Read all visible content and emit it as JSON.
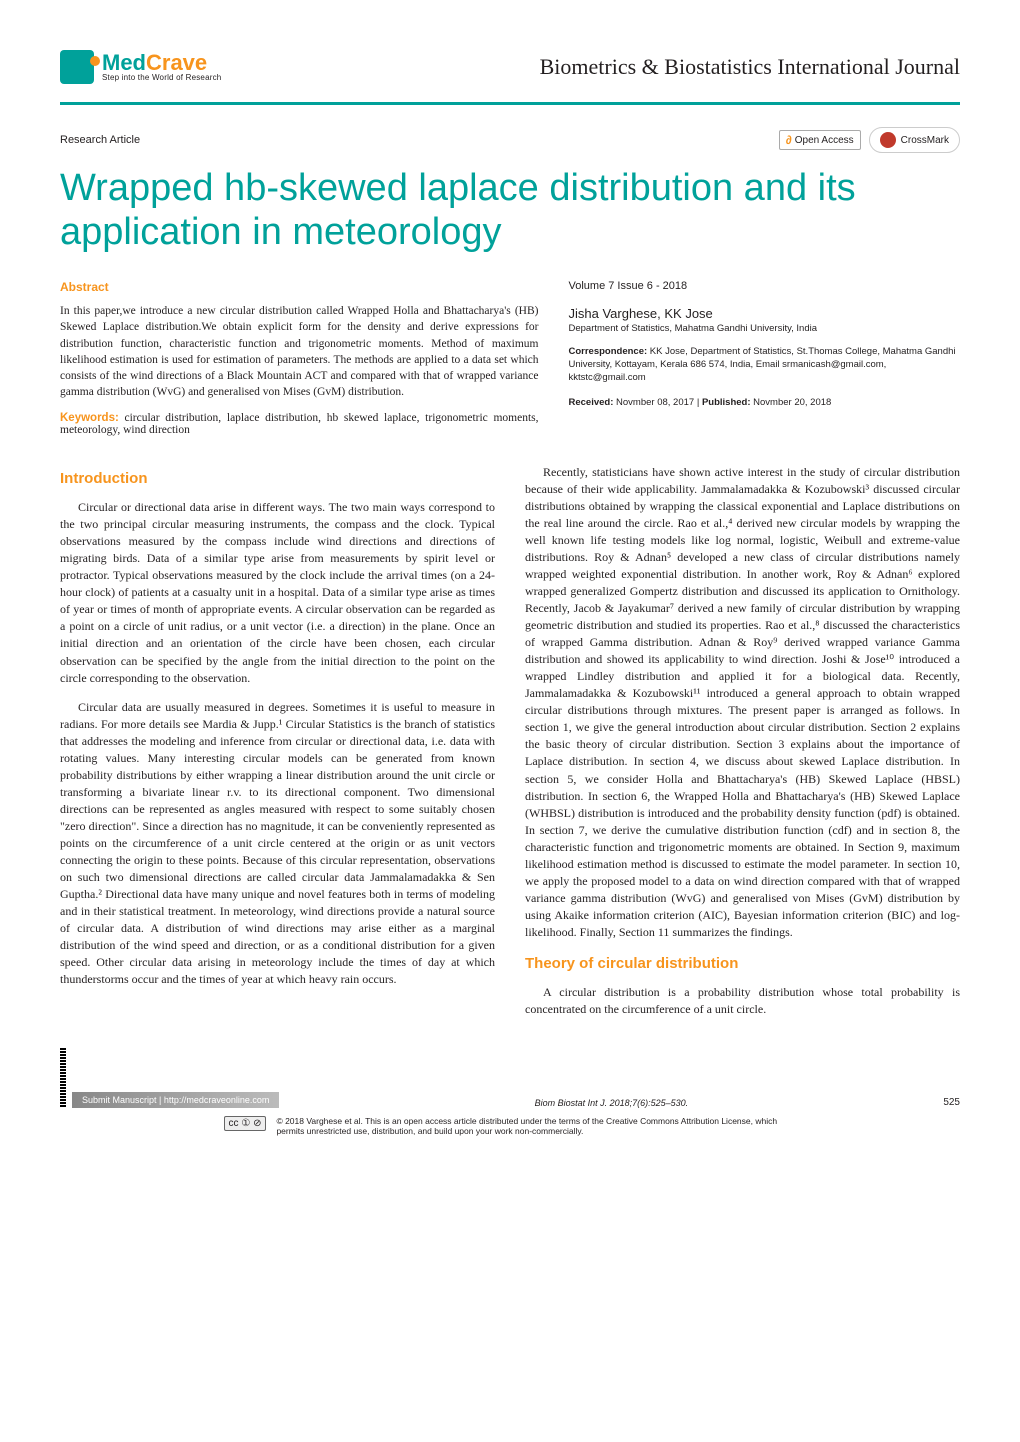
{
  "colors": {
    "teal": "#00a19a",
    "orange": "#f7941d",
    "text": "#231f20",
    "background": "#ffffff"
  },
  "header": {
    "logo_prefix": "Med",
    "logo_suffix": "Crave",
    "logo_tagline": "Step into the World of Research",
    "journal_name": "Biometrics & Biostatistics International Journal"
  },
  "article_type": "Research Article",
  "open_access_label": "Open Access",
  "crossmark_label": "CrossMark",
  "title": "Wrapped hb-skewed laplace distribution and its application in meteorology",
  "abstract": {
    "heading": "Abstract",
    "text": "In this paper,we introduce a new circular distribution called Wrapped Holla and Bhattacharya's (HB) Skewed Laplace distribution.We obtain explicit form for the density and derive expressions for distribution function, characteristic function and trigonometric moments. Method of maximum likelihood estimation is used for estimation of parameters. The methods are applied to a data set which consists of the wind directions of a Black Mountain ACT and compared with that of wrapped variance gamma distribution (WvG) and generalised von Mises (GvM) distribution.",
    "keywords_label": "Keywords:",
    "keywords": "circular distribution, laplace distribution, hb skewed laplace, trigonometric moments, meteorology, wind direction"
  },
  "meta": {
    "volume_issue": "Volume 7 Issue 6 - 2018",
    "authors": "Jisha Varghese, KK Jose",
    "affiliation": "Department of Statistics, Mahatma Gandhi University, India",
    "correspondence_label": "Correspondence:",
    "correspondence": " KK Jose, Department of Statistics, St.Thomas College, Mahatma Gandhi University, Kottayam, Kerala 686 574, India, Email srmanicash@gmail.com, kktstc@gmail.com",
    "received_label": "Received:",
    "received": " Novmber 08, 2017 | ",
    "published_label": "Published:",
    "published": " Novmber 20, 2018"
  },
  "sections": {
    "intro_heading": "Introduction",
    "intro_p1": "Circular or directional data arise in different ways. The two main ways correspond to the two principal circular measuring instruments, the compass and the clock. Typical observations measured by the compass include wind directions and directions of migrating birds. Data of a similar type arise from measurements by spirit level or protractor. Typical observations measured by the clock include the arrival times (on a 24-hour clock) of patients at a casualty unit in a hospital. Data of a similar type arise as times of year or times of month of appropriate events. A circular observation can be regarded as a point on a circle of unit radius, or a unit vector (i.e. a direction) in the plane. Once an initial direction and an orientation of the circle have been chosen, each circular observation can be specified by the angle from the initial direction to the point on the circle corresponding to the observation.",
    "intro_p2": "Circular data are usually measured in degrees. Sometimes it is useful to measure in radians. For more details see Mardia & Jupp.¹ Circular Statistics is the branch of statistics that addresses the modeling and inference from circular or directional data, i.e. data with rotating values. Many interesting circular models can be generated from known probability distributions by either wrapping a linear distribution around the unit circle or transforming a bivariate linear r.v. to its directional component. Two dimensional directions can be represented as angles measured with respect to some suitably chosen \"zero direction\". Since a direction has no magnitude, it can be conveniently represented as points on the circumference of a unit circle centered at the origin or as unit vectors connecting the origin to these points. Because of this circular representation, observations on such two dimensional directions are called circular data Jammalamadakka & Sen Guptha.² Directional data have many unique and novel features both in terms of modeling and in their statistical treatment. In meteorology, wind directions provide a natural source of circular data. A distribution of wind directions may arise either as a marginal distribution of the wind speed and direction, or as a conditional distribution for a given speed. Other circular data arising in meteorology include the times of day at which thunderstorms occur and the times of year at which heavy rain occurs.",
    "intro_p3": "Recently, statisticians have shown active interest in the study of circular distribution because of their wide applicability. Jammalamadakka & Kozubowski³ discussed circular distributions obtained by wrapping the classical exponential and Laplace distributions on the real line around the circle. Rao et al.,⁴ derived new circular models by wrapping the well known life testing models like log normal, logistic, Weibull and extreme-value distributions. Roy & Adnan⁵ developed a new class of circular distributions namely wrapped weighted exponential distribution. In another work, Roy & Adnan⁶ explored wrapped generalized Gompertz distribution and discussed its application to Ornithology. Recently, Jacob & Jayakumar⁷ derived a new family of circular distribution by wrapping geometric distribution and studied its properties. Rao et al.,⁸ discussed the characteristics of wrapped Gamma distribution. Adnan & Roy⁹ derived wrapped variance Gamma distribution and showed its applicability to wind direction. Joshi & Jose¹⁰ introduced a wrapped Lindley distribution and applied it for a biological data. Recently, Jammalamadakka & Kozubowski¹¹ introduced a general approach to obtain wrapped circular distributions through mixtures. The present paper is arranged as follows. In section 1, we give the general introduction about circular distribution. Section 2 explains the basic theory of circular distribution. Section 3 explains about the importance of Laplace distribution. In section 4, we discuss about skewed Laplace distribution. In section 5, we consider Holla and Bhattacharya's (HB) Skewed Laplace (HBSL) distribution. In section 6, the Wrapped Holla and Bhattacharya's (HB) Skewed Laplace (WHBSL) distribution is introduced and the probability density function (pdf) is obtained. In section 7, we derive the cumulative distribution function (cdf) and in section 8, the characteristic function and trigonometric moments are obtained. In Section 9, maximum likelihood estimation method is discussed to estimate the model parameter. In section 10, we apply the proposed model to a data on wind direction compared with that of wrapped variance gamma distribution (WvG) and generalised von Mises (GvM) distribution by using Akaike information criterion (AIC), Bayesian information criterion (BIC) and log-likelihood. Finally, Section 11 summarizes the findings.",
    "theory_heading": "Theory of circular distribution",
    "theory_p1": "A circular distribution is a probability distribution whose total probability is concentrated on the circumference of a unit circle."
  },
  "footer": {
    "submit_text": "Submit Manuscript | http://medcraveonline.com",
    "citation": "Biom Biostat Int J. 2018;7(6):525–530.",
    "page_number": "525",
    "cc_label": "cc ① ⊘",
    "license_text": "© 2018 Varghese et al. This is an open access article distributed under the terms of the Creative Commons Attribution License, which permits unrestricted use, distribution, and build upon your work non-commercially."
  }
}
